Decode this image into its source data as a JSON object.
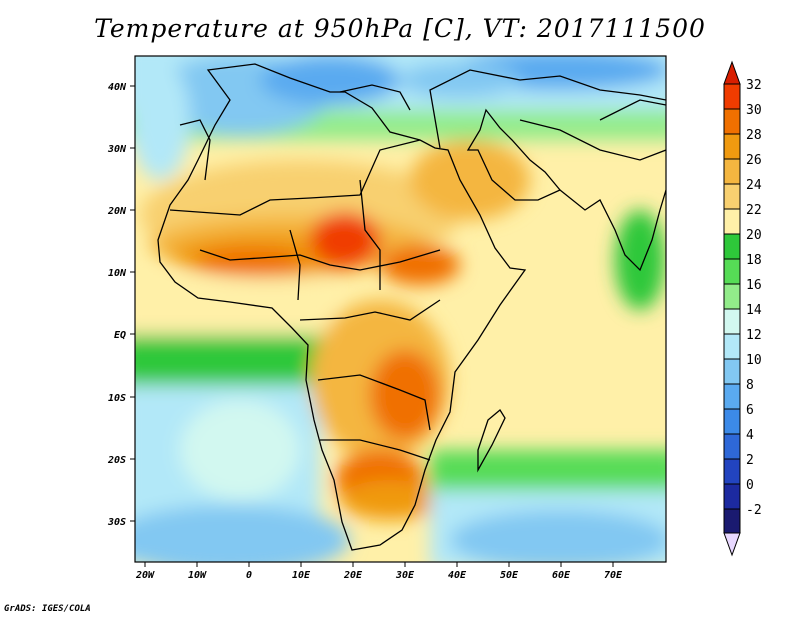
{
  "title": "Temperature at 950hPa [C], VT: 2017111500",
  "credit": "GrADS: IGES/COLA",
  "map": {
    "lat_labels": [
      "40N",
      "30N",
      "20N",
      "10N",
      "EQ",
      "10S",
      "20S",
      "30S"
    ],
    "lon_labels": [
      "20W",
      "10W",
      "0",
      "10E",
      "20E",
      "30E",
      "40E",
      "50E",
      "60E",
      "70E"
    ]
  },
  "colorbar": {
    "levels": [
      "32",
      "30",
      "28",
      "26",
      "24",
      "22",
      "20",
      "18",
      "16",
      "14",
      "12",
      "10",
      "8",
      "6",
      "4",
      "2",
      "0",
      "-2"
    ],
    "colors": [
      "#f03c00",
      "#f07000",
      "#f09a10",
      "#f4b640",
      "#f8d070",
      "#fff0a8",
      "#2ec83a",
      "#56dc56",
      "#92ec8a",
      "#d2f8f0",
      "#b2e8f8",
      "#82c8f2",
      "#5aaaf0",
      "#3c8ae8",
      "#2e68d8",
      "#2244c0",
      "#1c2aa0",
      "#1a1a70"
    ],
    "top_color": "#d81e00",
    "bottom_color": "#e8d8ff"
  }
}
